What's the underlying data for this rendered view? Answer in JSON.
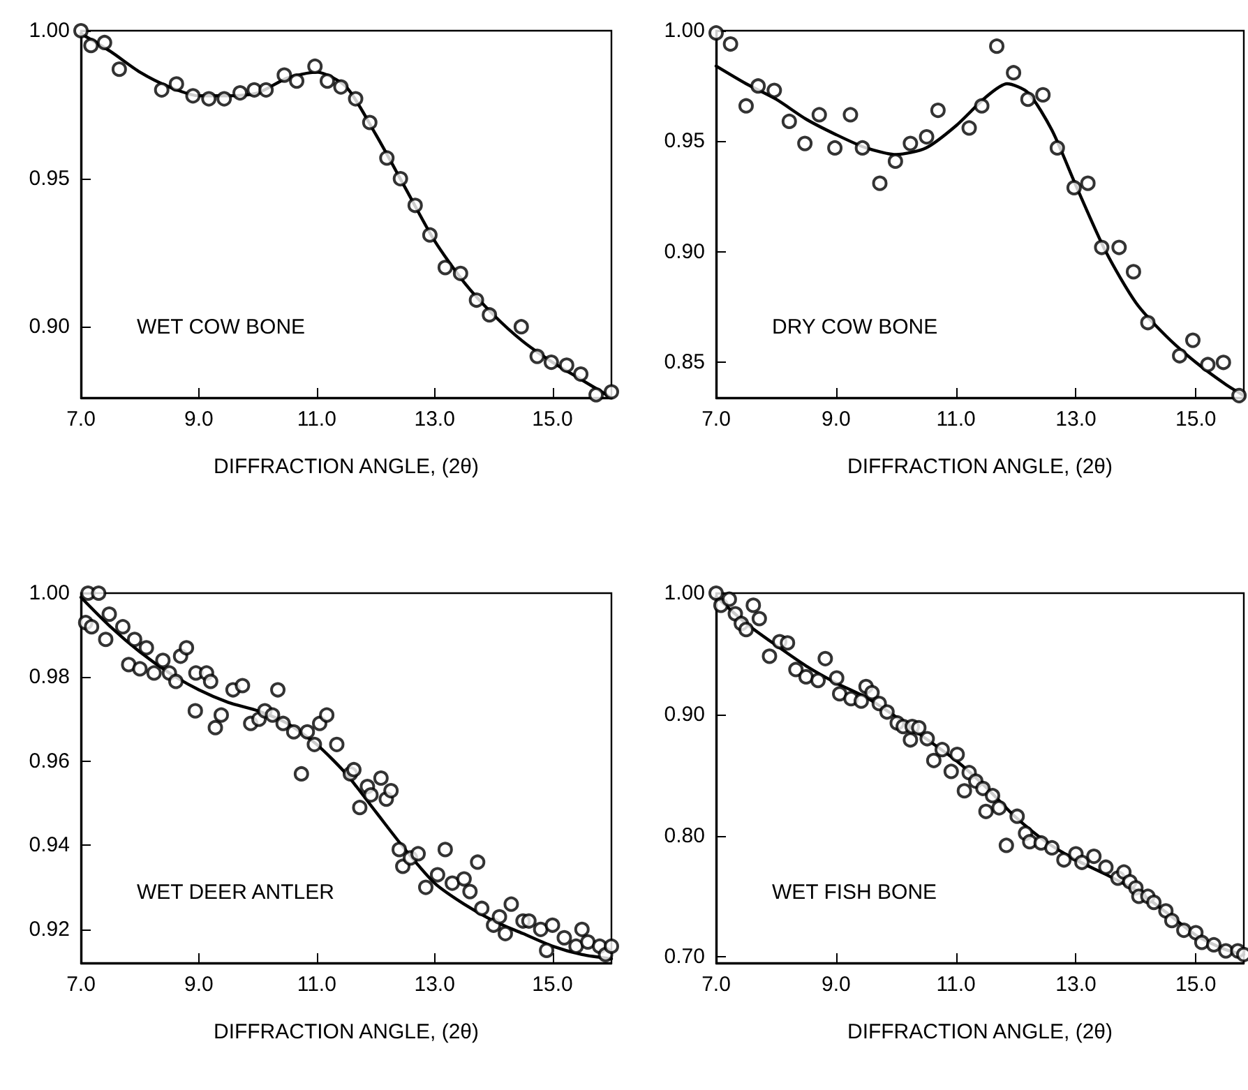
{
  "chart_data": [
    {
      "type": "scatter",
      "xlabel": "DIFFRACTION ANGLE, (2θ)",
      "annotations": [
        "WET COW BONE"
      ],
      "xlim": [
        7.0,
        16.0
      ],
      "xticks": [
        {
          "value": 7,
          "label": "7.0"
        },
        {
          "value": 9,
          "label": "9.0"
        },
        {
          "value": 11,
          "label": "11.0"
        },
        {
          "value": 13,
          "label": "13.0"
        },
        {
          "value": 15,
          "label": "15.0"
        }
      ],
      "ylim": [
        0.876,
        1.0
      ],
      "yticks": [
        {
          "value": 0.9,
          "label": "0.90"
        },
        {
          "value": 0.95,
          "label": "0.95"
        },
        {
          "value": 1.0,
          "label": "1.00"
        }
      ],
      "grid": false,
      "marker": "circle",
      "line_style": "solid",
      "series": [
        {
          "color": "#000000",
          "x": [
            7.0,
            7.17,
            7.4,
            7.65,
            8.37,
            8.62,
            8.9,
            9.17,
            9.43,
            9.7,
            9.94,
            10.14,
            10.45,
            10.66,
            10.97,
            11.18,
            11.41,
            11.66,
            11.9,
            12.19,
            12.42,
            12.67,
            12.92,
            13.18,
            13.44,
            13.71,
            13.93,
            14.47,
            14.74,
            14.98,
            15.24,
            15.48,
            15.74,
            16.0
          ],
          "values": [
            1.0,
            0.995,
            0.996,
            0.987,
            0.98,
            0.982,
            0.978,
            0.977,
            0.977,
            0.979,
            0.98,
            0.98,
            0.985,
            0.983,
            0.988,
            0.983,
            0.981,
            0.977,
            0.969,
            0.957,
            0.95,
            0.941,
            0.931,
            0.92,
            0.918,
            0.909,
            0.904,
            0.9,
            0.89,
            0.888,
            0.887,
            0.884,
            0.877,
            0.878
          ]
        },
        {
          "type": "line",
          "color": "#000000",
          "x": [
            7.0,
            7.5,
            8.0,
            8.5,
            9.0,
            9.5,
            10.0,
            10.5,
            11.0,
            11.5,
            12.0,
            12.5,
            13.0,
            13.5,
            14.0,
            14.5,
            15.0,
            15.5,
            16.0
          ],
          "marker": "none",
          "values": [
            0.999,
            0.993,
            0.986,
            0.981,
            0.978,
            0.978,
            0.979,
            0.984,
            0.986,
            0.981,
            0.965,
            0.947,
            0.929,
            0.915,
            0.904,
            0.895,
            0.888,
            0.882,
            0.876
          ]
        }
      ]
    },
    {
      "type": "scatter",
      "xlabel": "DIFFRACTION ANGLE, (2θ)",
      "annotations": [
        "DRY COW BONE"
      ],
      "xlim": [
        7.0,
        15.8
      ],
      "xticks": [
        {
          "value": 7,
          "label": "7.0"
        },
        {
          "value": 9,
          "label": "9.0"
        },
        {
          "value": 11,
          "label": "11.0"
        },
        {
          "value": 13,
          "label": "13.0"
        },
        {
          "value": 15,
          "label": "15.0"
        }
      ],
      "ylim": [
        0.834,
        1.0
      ],
      "yticks": [
        {
          "value": 0.85,
          "label": "0.85"
        },
        {
          "value": 0.9,
          "label": "0.90"
        },
        {
          "value": 0.95,
          "label": "0.95"
        },
        {
          "value": 1.0,
          "label": "1.00"
        }
      ],
      "grid": false,
      "marker": "circle",
      "line_style": "solid",
      "series": [
        {
          "color": "#000000",
          "x": [
            7.0,
            7.24,
            7.5,
            7.7,
            7.97,
            8.22,
            8.48,
            8.72,
            8.98,
            9.24,
            9.44,
            9.73,
            9.99,
            10.24,
            10.51,
            10.7,
            11.22,
            11.43,
            11.68,
            11.96,
            12.2,
            12.45,
            12.69,
            12.97,
            13.2,
            13.43,
            13.72,
            13.96,
            14.2,
            14.73,
            14.95,
            15.2,
            15.46,
            15.72
          ],
          "values": [
            0.999,
            0.994,
            0.966,
            0.975,
            0.973,
            0.959,
            0.949,
            0.962,
            0.947,
            0.962,
            0.947,
            0.931,
            0.941,
            0.949,
            0.952,
            0.964,
            0.956,
            0.966,
            0.993,
            0.981,
            0.969,
            0.971,
            0.947,
            0.929,
            0.931,
            0.902,
            0.902,
            0.891,
            0.868,
            0.853,
            0.86,
            0.849,
            0.85,
            0.835
          ]
        },
        {
          "type": "line",
          "color": "#000000",
          "x": [
            7.0,
            7.5,
            8.0,
            8.5,
            9.0,
            9.5,
            10.0,
            10.5,
            11.0,
            11.5,
            11.85,
            12.2,
            12.6,
            13.0,
            13.5,
            14.0,
            14.5,
            15.0,
            15.5,
            15.8
          ],
          "marker": "none",
          "values": [
            0.984,
            0.976,
            0.969,
            0.96,
            0.953,
            0.947,
            0.944,
            0.947,
            0.957,
            0.97,
            0.976,
            0.972,
            0.955,
            0.93,
            0.9,
            0.877,
            0.862,
            0.85,
            0.84,
            0.835
          ]
        }
      ]
    },
    {
      "type": "scatter",
      "xlabel": "DIFFRACTION ANGLE, (2θ)",
      "annotations": [
        "WET DEER ANTLER"
      ],
      "xlim": [
        7.0,
        16.0
      ],
      "xticks": [
        {
          "value": 7,
          "label": "7.0"
        },
        {
          "value": 9,
          "label": "9.0"
        },
        {
          "value": 11,
          "label": "11.0"
        },
        {
          "value": 13,
          "label": "13.0"
        },
        {
          "value": 15,
          "label": "15.0"
        }
      ],
      "ylim": [
        0.912,
        1.0
      ],
      "yticks": [
        {
          "value": 0.92,
          "label": "0.92"
        },
        {
          "value": 0.94,
          "label": "0.94"
        },
        {
          "value": 0.96,
          "label": "0.96"
        },
        {
          "value": 0.98,
          "label": "0.98"
        },
        {
          "value": 1.0,
          "label": "1.00"
        }
      ],
      "grid": false,
      "marker": "circle",
      "line_style": "solid",
      "series": [
        {
          "color": "#000000",
          "x": [
            7.12,
            7.3,
            7.08,
            7.18,
            7.42,
            7.48,
            7.71,
            7.91,
            7.81,
            8.0,
            8.11,
            8.24,
            8.39,
            8.5,
            8.61,
            8.69,
            8.79,
            8.94,
            8.95,
            9.13,
            9.2,
            9.28,
            9.38,
            9.58,
            9.74,
            9.88,
            10.02,
            10.12,
            10.25,
            10.34,
            10.43,
            10.61,
            10.74,
            10.84,
            10.96,
            11.05,
            11.17,
            11.34,
            11.57,
            11.63,
            11.73,
            11.86,
            11.92,
            12.09,
            12.18,
            12.26,
            12.4,
            12.46,
            12.59,
            12.72,
            12.85,
            13.05,
            13.18,
            13.3,
            13.5,
            13.6,
            13.73,
            13.8,
            14.0,
            14.1,
            14.2,
            14.3,
            14.5,
            14.6,
            14.8,
            14.9,
            15.0,
            15.2,
            15.4,
            15.5,
            15.6,
            15.8,
            15.9,
            16.0
          ],
          "values": [
            1.0,
            1.0,
            0.993,
            0.992,
            0.989,
            0.995,
            0.992,
            0.989,
            0.983,
            0.982,
            0.987,
            0.981,
            0.984,
            0.981,
            0.979,
            0.985,
            0.987,
            0.972,
            0.981,
            0.981,
            0.979,
            0.968,
            0.971,
            0.977,
            0.978,
            0.969,
            0.97,
            0.972,
            0.971,
            0.977,
            0.969,
            0.967,
            0.957,
            0.967,
            0.964,
            0.969,
            0.971,
            0.964,
            0.957,
            0.958,
            0.949,
            0.954,
            0.952,
            0.956,
            0.951,
            0.953,
            0.939,
            0.935,
            0.937,
            0.938,
            0.93,
            0.933,
            0.939,
            0.931,
            0.932,
            0.929,
            0.936,
            0.925,
            0.921,
            0.923,
            0.919,
            0.926,
            0.922,
            0.922,
            0.92,
            0.915,
            0.921,
            0.918,
            0.916,
            0.92,
            0.917,
            0.916,
            0.914,
            0.916
          ]
        },
        {
          "type": "line",
          "color": "#000000",
          "x": [
            7.0,
            7.5,
            8.0,
            8.5,
            9.0,
            9.5,
            10.0,
            10.5,
            11.0,
            11.5,
            12.0,
            12.5,
            13.0,
            13.5,
            14.0,
            14.5,
            15.0,
            15.5,
            16.0
          ],
          "marker": "none",
          "values": [
            0.999,
            0.992,
            0.986,
            0.981,
            0.977,
            0.974,
            0.972,
            0.969,
            0.964,
            0.957,
            0.948,
            0.939,
            0.931,
            0.926,
            0.922,
            0.919,
            0.916,
            0.914,
            0.913
          ]
        }
      ]
    },
    {
      "type": "scatter",
      "xlabel": "DIFFRACTION ANGLE, (2θ)",
      "annotations": [
        "WET FISH BONE"
      ],
      "xlim": [
        7.0,
        15.8
      ],
      "xticks": [
        {
          "value": 7,
          "label": "7.0"
        },
        {
          "value": 9,
          "label": "9.0"
        },
        {
          "value": 11,
          "label": "11.0"
        },
        {
          "value": 13,
          "label": "13.0"
        },
        {
          "value": 15,
          "label": "15.0"
        }
      ],
      "ylim": [
        0.695,
        1.0
      ],
      "yticks": [
        {
          "value": 0.7,
          "label": "0.70"
        },
        {
          "value": 0.8,
          "label": "0.80"
        },
        {
          "value": 0.9,
          "label": "0.90"
        },
        {
          "value": 1.0,
          "label": "1.00"
        }
      ],
      "grid": false,
      "marker": "circle",
      "line_style": "solid",
      "series": [
        {
          "color": "#000000",
          "x": [
            7.0,
            7.08,
            7.22,
            7.32,
            7.42,
            7.5,
            7.62,
            7.72,
            7.89,
            8.06,
            8.19,
            8.33,
            8.5,
            8.7,
            8.82,
            9.01,
            9.06,
            9.25,
            9.42,
            9.5,
            9.6,
            9.72,
            9.85,
            10.02,
            10.12,
            10.24,
            10.27,
            10.38,
            10.52,
            10.63,
            10.77,
            10.92,
            11.02,
            11.14,
            11.22,
            11.33,
            11.45,
            11.61,
            11.5,
            11.72,
            12.02,
            11.84,
            12.16,
            12.23,
            12.42,
            12.6,
            12.8,
            13.0,
            13.1,
            13.3,
            13.5,
            13.7,
            13.8,
            13.9,
            14.0,
            14.05,
            14.2,
            14.3,
            14.5,
            14.6,
            14.8,
            15.0,
            15.1,
            15.3,
            15.5,
            15.7,
            15.8
          ],
          "values": [
            1.0,
            0.99,
            0.995,
            0.983,
            0.975,
            0.97,
            0.99,
            0.979,
            0.948,
            0.96,
            0.959,
            0.937,
            0.931,
            0.928,
            0.946,
            0.93,
            0.917,
            0.913,
            0.911,
            0.923,
            0.918,
            0.909,
            0.902,
            0.893,
            0.89,
            0.879,
            0.89,
            0.889,
            0.88,
            0.862,
            0.871,
            0.853,
            0.867,
            0.837,
            0.852,
            0.845,
            0.839,
            0.833,
            0.82,
            0.823,
            0.816,
            0.792,
            0.802,
            0.795,
            0.794,
            0.79,
            0.78,
            0.785,
            0.778,
            0.783,
            0.774,
            0.765,
            0.77,
            0.762,
            0.757,
            0.75,
            0.75,
            0.745,
            0.738,
            0.73,
            0.722,
            0.72,
            0.712,
            0.71,
            0.705,
            0.705,
            0.702
          ]
        },
        {
          "type": "line",
          "color": "#000000",
          "x": [
            7.0,
            7.5,
            8.0,
            8.5,
            9.0,
            9.5,
            10.0,
            10.5,
            11.0,
            11.5,
            12.0,
            12.5,
            13.0,
            13.5,
            14.0,
            14.5,
            15.0,
            15.5,
            15.8
          ],
          "marker": "none",
          "values": [
            0.997,
            0.975,
            0.957,
            0.94,
            0.926,
            0.914,
            0.898,
            0.88,
            0.862,
            0.84,
            0.815,
            0.795,
            0.78,
            0.768,
            0.755,
            0.737,
            0.718,
            0.706,
            0.702
          ]
        }
      ]
    }
  ]
}
